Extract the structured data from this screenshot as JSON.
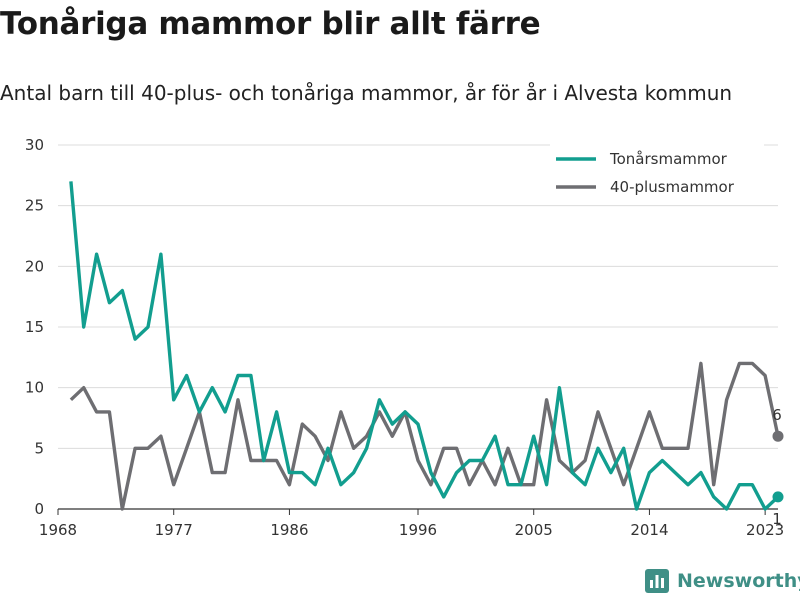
{
  "title": "Tonåriga mammor blir allt färre",
  "subtitle": "Antal barn till 40-plus- och tonåriga mammor, år för år i Alvesta kommun",
  "brand": {
    "name": "Newsworthy",
    "icon": "bar-chart-logo-icon"
  },
  "colors": {
    "teen": "#129e8f",
    "plus40": "#6e6e72",
    "grid": "#dcdcdc",
    "brand": "#3f8f86"
  },
  "chart_data": {
    "type": "line",
    "title": "Tonåriga mammor blir allt färre",
    "subtitle": "Antal barn till 40-plus- och tonåriga mammor, år för år i Alvesta kommun",
    "xlabel": "",
    "ylabel": "",
    "xlim": [
      1968,
      2024
    ],
    "ylim": [
      0,
      30
    ],
    "x_ticks": [
      1968,
      1977,
      1986,
      1996,
      2005,
      2014,
      2023
    ],
    "y_ticks": [
      0,
      5,
      10,
      15,
      20,
      25,
      30
    ],
    "grid": true,
    "legend": "top-right",
    "x": [
      1969,
      1970,
      1971,
      1972,
      1973,
      1974,
      1975,
      1976,
      1977,
      1978,
      1979,
      1980,
      1981,
      1982,
      1983,
      1984,
      1985,
      1986,
      1987,
      1988,
      1989,
      1990,
      1991,
      1992,
      1993,
      1994,
      1995,
      1996,
      1997,
      1998,
      1999,
      2000,
      2001,
      2002,
      2003,
      2004,
      2005,
      2006,
      2007,
      2008,
      2009,
      2010,
      2011,
      2012,
      2013,
      2014,
      2015,
      2016,
      2017,
      2018,
      2019,
      2020,
      2021,
      2022,
      2023,
      2024
    ],
    "series": [
      {
        "name": "Tonårsmammor",
        "color": "#129e8f",
        "values": [
          27,
          15,
          21,
          17,
          18,
          14,
          15,
          21,
          9,
          11,
          8,
          10,
          8,
          11,
          11,
          4,
          8,
          3,
          3,
          2,
          5,
          2,
          3,
          5,
          9,
          7,
          8,
          7,
          3,
          1,
          3,
          4,
          4,
          6,
          2,
          2,
          6,
          2,
          10,
          3,
          2,
          5,
          3,
          5,
          0,
          3,
          4,
          3,
          2,
          3,
          1,
          0,
          2,
          2,
          0,
          1
        ],
        "end_label": "1"
      },
      {
        "name": "40-plusmammor",
        "color": "#6e6e72",
        "values": [
          9,
          10,
          8,
          8,
          0,
          5,
          5,
          6,
          2,
          5,
          8,
          3,
          3,
          9,
          4,
          4,
          4,
          2,
          7,
          6,
          4,
          8,
          5,
          6,
          8,
          6,
          8,
          4,
          2,
          5,
          5,
          2,
          4,
          2,
          5,
          2,
          2,
          9,
          4,
          3,
          4,
          8,
          5,
          2,
          5,
          8,
          5,
          5,
          5,
          12,
          2,
          9,
          12,
          12,
          11,
          6
        ],
        "end_label": "6"
      }
    ]
  }
}
